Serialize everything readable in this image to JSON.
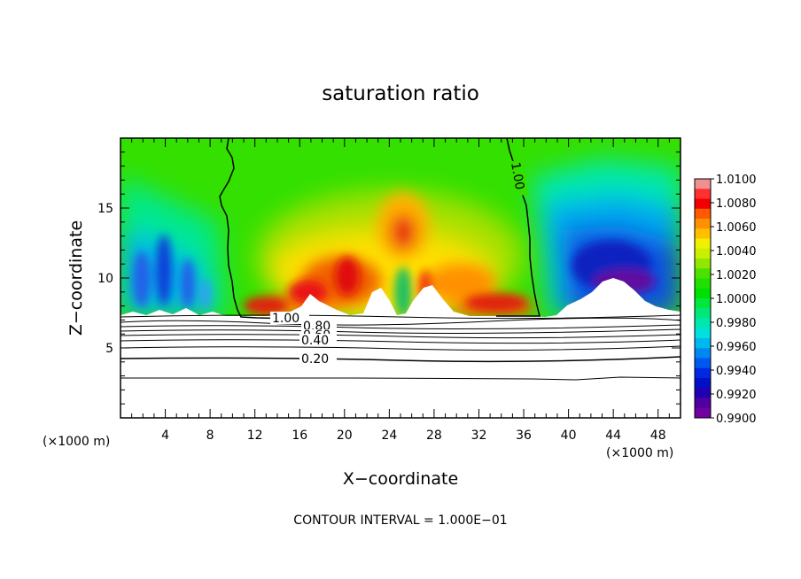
{
  "chart_data": {
    "type": "heatmap",
    "title": "saturation ratio",
    "xlabel": "X−coordinate",
    "ylabel": "Z−coordinate",
    "x_unit": "(×1000 m)",
    "y_unit": "(×1000 m)",
    "xlim": [
      0,
      50
    ],
    "ylim": [
      0,
      20
    ],
    "x_ticks": [
      "4",
      "8",
      "12",
      "16",
      "20",
      "24",
      "28",
      "32",
      "36",
      "40",
      "44",
      "48"
    ],
    "y_ticks": [
      "5",
      "10",
      "15"
    ],
    "colorbar": {
      "range": [
        0.99,
        1.01
      ],
      "labels": [
        "1.0100",
        "1.0080",
        "1.0060",
        "1.0040",
        "1.0020",
        "1.0000",
        "0.9980",
        "0.9960",
        "0.9940",
        "0.9920",
        "0.9900"
      ]
    },
    "contour_labels": [
      "1.00",
      "1.00",
      "0.80",
      "0.60",
      "0.40",
      "0.20"
    ],
    "contour_interval": "CONTOUR INTERVAL = 1.000E−01"
  }
}
